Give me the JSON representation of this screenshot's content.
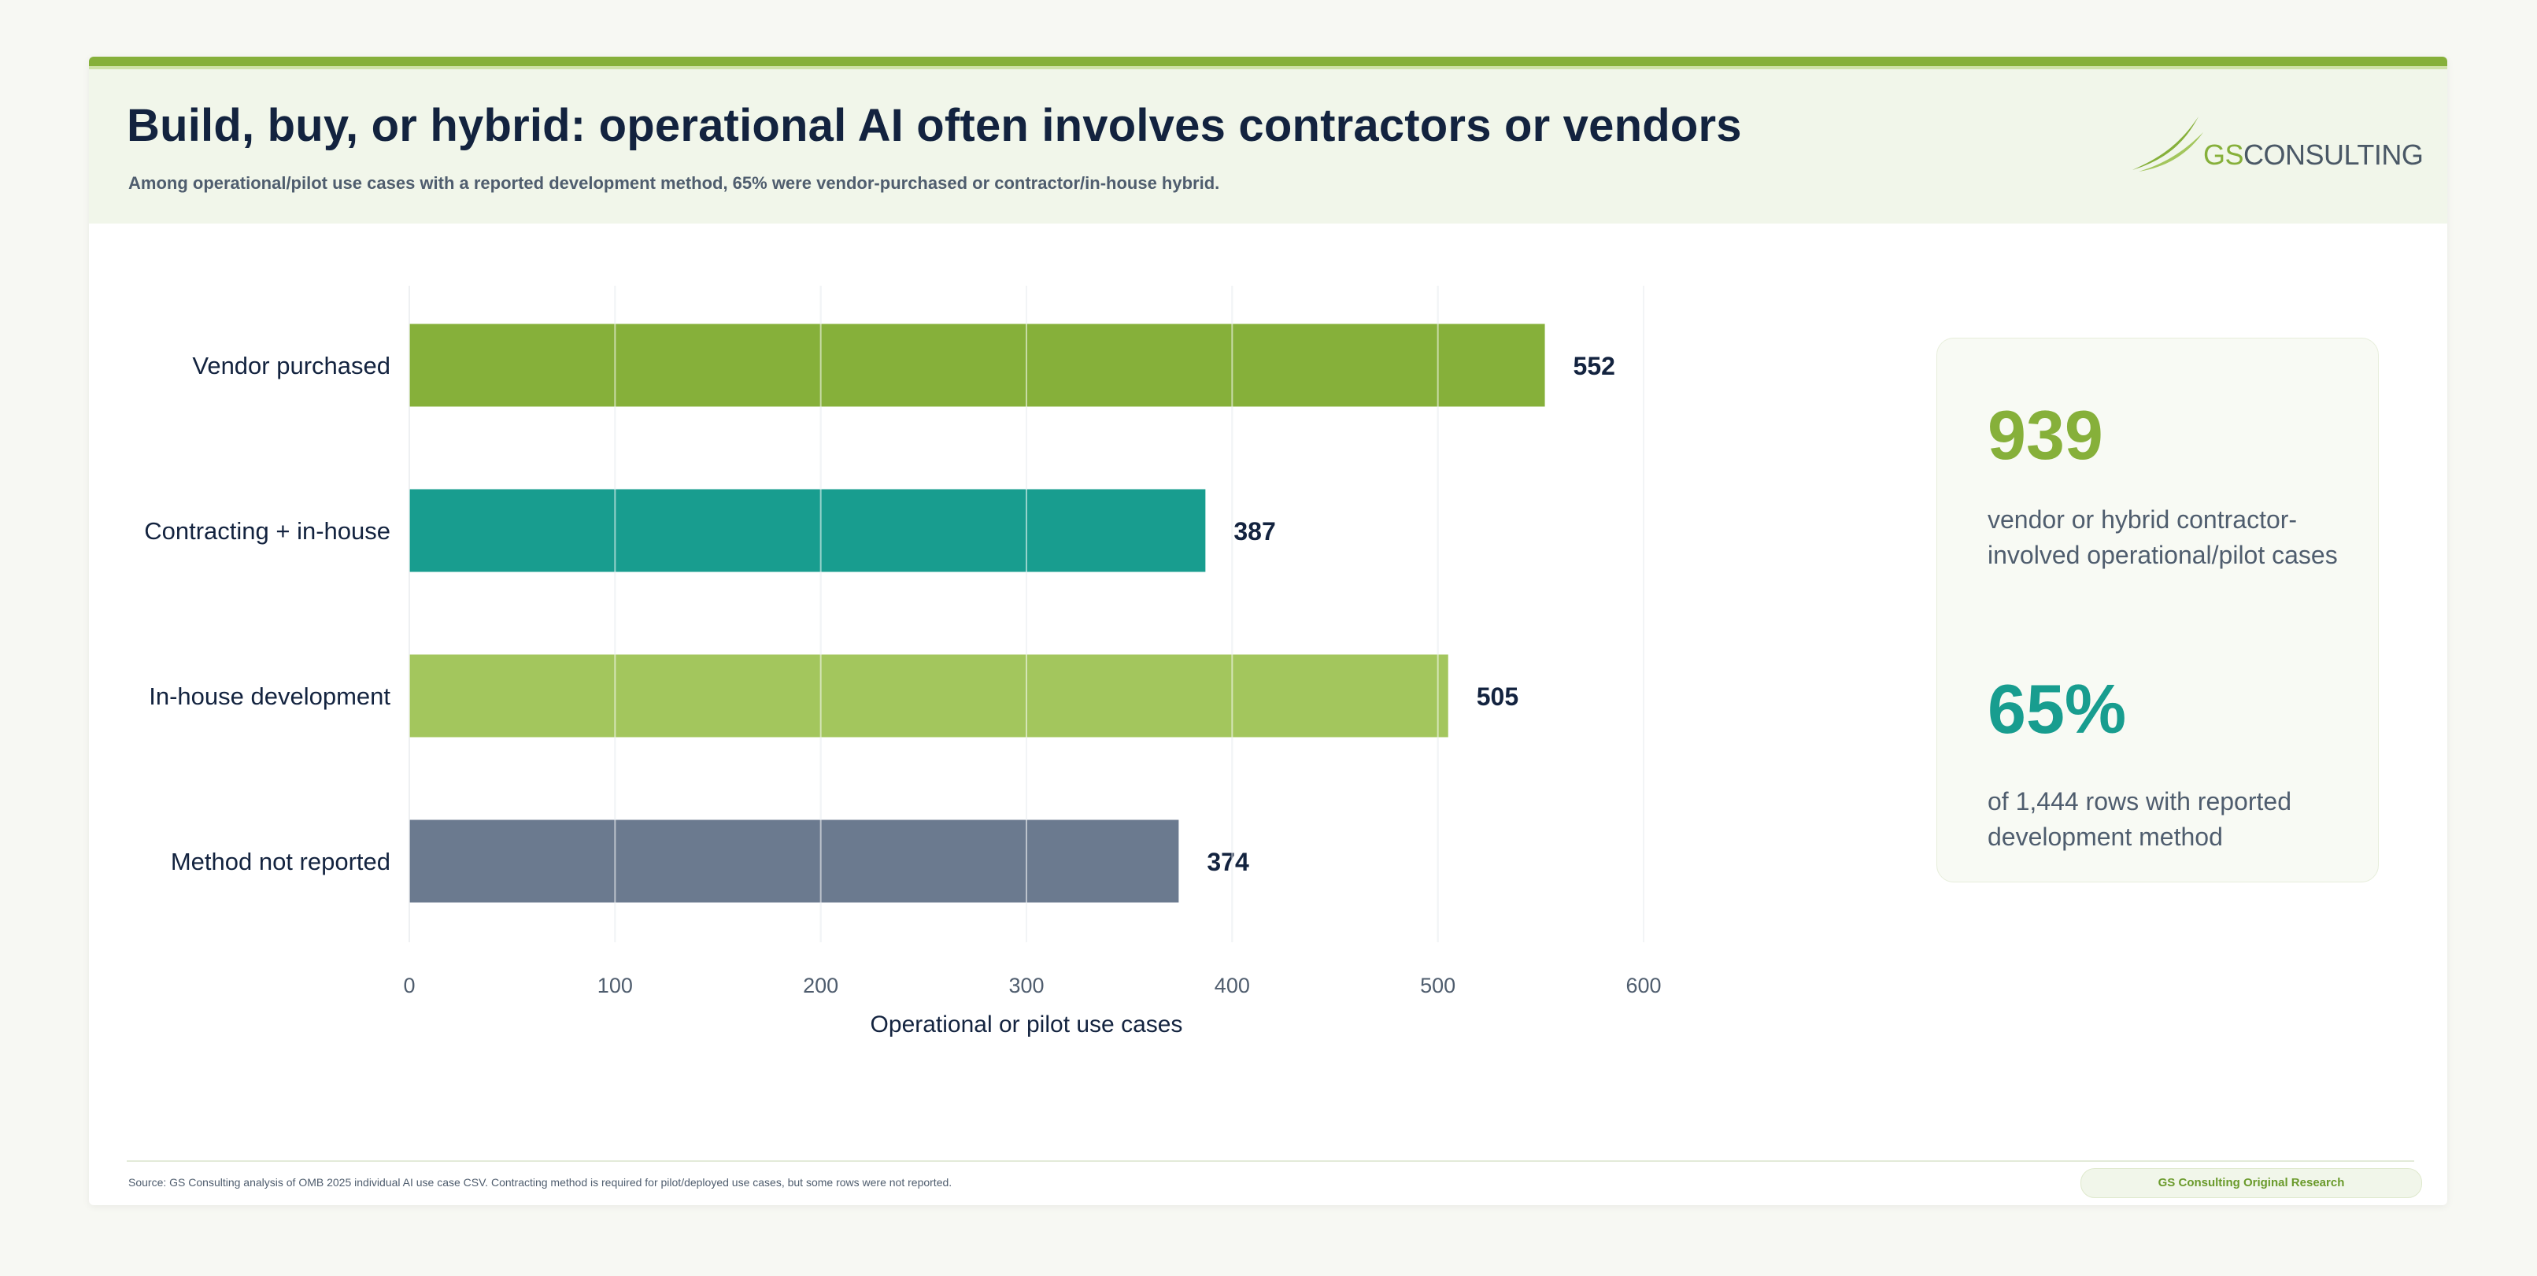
{
  "header": {
    "title": "Build, buy, or hybrid: operational AI often involves contractors or vendors",
    "subtitle": "Among operational/pilot use cases with a reported development method, 65% were vendor-purchased or contractor/in-house hybrid."
  },
  "logo": {
    "text_prefix": "GS",
    "text_suffix": "CONSULTING",
    "icon": "swoosh-icon",
    "color_primary": "#86b03a",
    "color_secondary": "#4a5866"
  },
  "chart_data": {
    "type": "bar",
    "orientation": "horizontal",
    "categories": [
      "Vendor purchased",
      "Contracting + in-house",
      "In-house development",
      "Method not reported"
    ],
    "values": [
      552,
      387,
      505,
      374
    ],
    "value_labels": [
      "552",
      "387",
      "505",
      "374"
    ],
    "colors": [
      "#86b03a",
      "#189d8f",
      "#a3c65d",
      "#6b7a8f"
    ],
    "xlabel": "Operational or pilot use cases",
    "xlim": [
      0,
      600
    ],
    "xticks": [
      0,
      100,
      200,
      300,
      400,
      500,
      600
    ],
    "grid": true
  },
  "kpis": [
    {
      "value": "939",
      "description": "vendor or hybrid contractor-involved operational/pilot cases",
      "color": "#86b03a"
    },
    {
      "value": "65%",
      "description": "of 1,444 rows with reported development method",
      "color": "#189d8f"
    }
  ],
  "footer": {
    "source": "Source: GS Consulting analysis of OMB 2025 individual AI use case CSV. Contracting method is required for pilot/deployed use cases, but some rows were not reported.",
    "badge": "GS Consulting Original Research"
  }
}
